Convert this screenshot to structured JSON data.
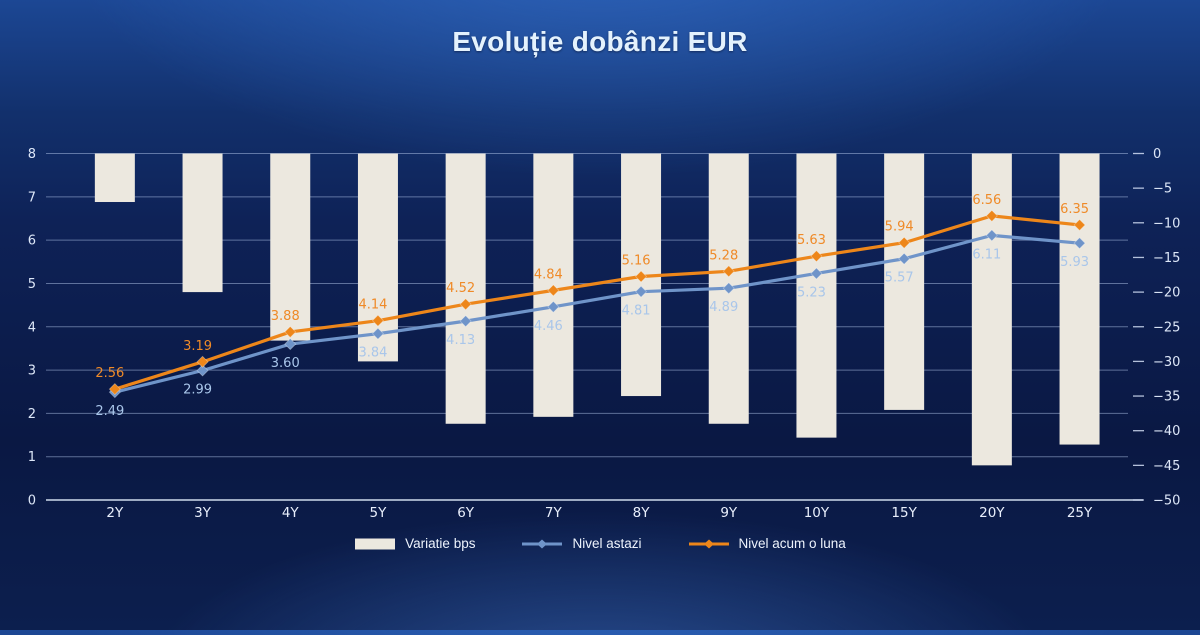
{
  "title": "Evoluție dobânzi EUR",
  "legend": {
    "items": [
      {
        "label": "Variatie bps",
        "swatch": "bar",
        "color": "#ece8df"
      },
      {
        "label": "Nivel astazi",
        "swatch": "line",
        "color": "#6f94c9"
      },
      {
        "label": "Nivel acum o luna",
        "swatch": "line",
        "color": "#ed861a"
      }
    ]
  },
  "chart_data": {
    "type": "combo-bar-line",
    "title": "Evoluție dobânzi EUR",
    "categories": [
      "2Y",
      "3Y",
      "4Y",
      "5Y",
      "6Y",
      "7Y",
      "8Y",
      "9Y",
      "10Y",
      "15Y",
      "20Y",
      "25Y"
    ],
    "series": [
      {
        "name": "Variatie bps",
        "type": "bar",
        "axis": "right",
        "color": "#ece8df",
        "values": [
          -7,
          -20,
          -27,
          -30,
          -39,
          -38,
          -35,
          -39,
          -41,
          -37,
          -45,
          -42
        ]
      },
      {
        "name": "Nivel astazi",
        "type": "line",
        "axis": "left",
        "color": "#6f94c9",
        "label_color": "#a9c6ea",
        "label_position": "below",
        "values": [
          2.49,
          2.99,
          3.6,
          3.84,
          4.13,
          4.46,
          4.81,
          4.89,
          5.23,
          5.57,
          6.11,
          5.93
        ]
      },
      {
        "name": "Nivel acum o luna",
        "type": "line",
        "axis": "left",
        "color": "#ed861a",
        "label_color": "#ef8a28",
        "label_position": "above",
        "values": [
          2.56,
          3.19,
          3.88,
          4.14,
          4.52,
          4.84,
          5.16,
          5.28,
          5.63,
          5.94,
          6.56,
          6.35
        ]
      }
    ],
    "left_axis": {
      "min": 0,
      "max": 8,
      "ticks": [
        0,
        1,
        2,
        3,
        4,
        5,
        6,
        7,
        8
      ]
    },
    "right_axis": {
      "min": -50,
      "max": 0,
      "ticks": [
        0,
        -5,
        -10,
        -15,
        -20,
        -25,
        -30,
        -35,
        -40,
        -45,
        -50
      ]
    },
    "grid": true,
    "legend_position": "bottom"
  }
}
